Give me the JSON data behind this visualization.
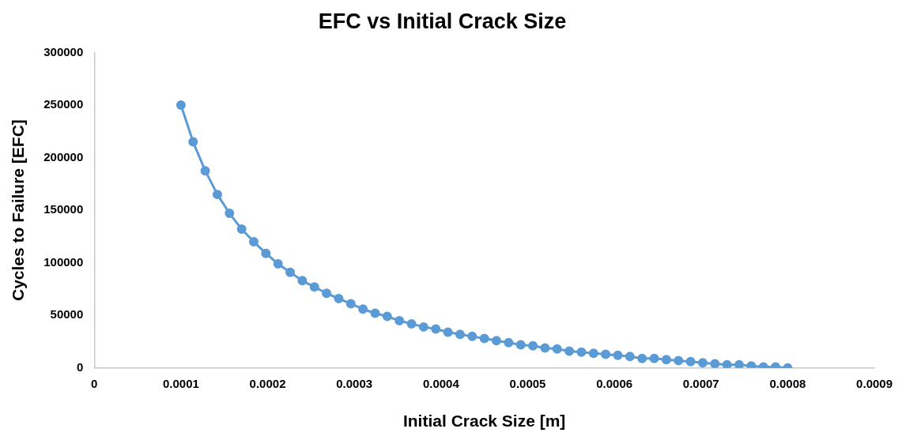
{
  "chart_data": {
    "type": "line",
    "title": "EFC vs Initial Crack Size",
    "xlabel": "Initial Crack Size [m]",
    "ylabel": "Cycles to Failure [EFC]",
    "x": [
      0.0001,
      0.000114,
      0.000128,
      0.000142,
      0.000156,
      0.00017,
      0.000184,
      0.000198,
      0.000212,
      0.000226,
      0.00024,
      0.000254,
      0.000268,
      0.000282,
      0.000296,
      0.00031,
      0.000324,
      0.000338,
      0.000352,
      0.000366,
      0.00038,
      0.000394,
      0.000408,
      0.000422,
      0.000436,
      0.00045,
      0.000464,
      0.000478,
      0.000492,
      0.000506,
      0.00052,
      0.000534,
      0.000548,
      0.000562,
      0.000576,
      0.00059,
      0.000604,
      0.000618,
      0.000632,
      0.000646,
      0.00066,
      0.000674,
      0.000688,
      0.000702,
      0.000716,
      0.00073,
      0.000744,
      0.000758,
      0.000772,
      0.000786,
      0.0008
    ],
    "series": [
      {
        "color": "#5b9bd5",
        "values": [
          250000,
          215000,
          187500,
          165000,
          147000,
          132000,
          120000,
          109000,
          99000,
          91000,
          83000,
          77000,
          71000,
          66000,
          61000,
          56000,
          52000,
          49000,
          45000,
          42000,
          39000,
          37000,
          34000,
          32000,
          30000,
          28000,
          26000,
          24000,
          22000,
          21000,
          19000,
          18000,
          16000,
          15000,
          14000,
          13000,
          12000,
          11000,
          9000,
          9000,
          8000,
          7000,
          6000,
          5000,
          4000,
          3000,
          3000,
          2000,
          1000,
          1000,
          0
        ]
      }
    ],
    "marker": "circle",
    "line_style": "solid",
    "grid": false,
    "legend": false,
    "xlim": [
      0,
      0.0009
    ],
    "xticks": [
      0,
      0.0001,
      0.0002,
      0.0003,
      0.0004,
      0.0005,
      0.0006,
      0.0007,
      0.0008,
      0.0009
    ],
    "ylim": [
      0,
      300000
    ],
    "yticks": [
      0,
      50000,
      100000,
      150000,
      200000,
      250000,
      300000
    ]
  }
}
